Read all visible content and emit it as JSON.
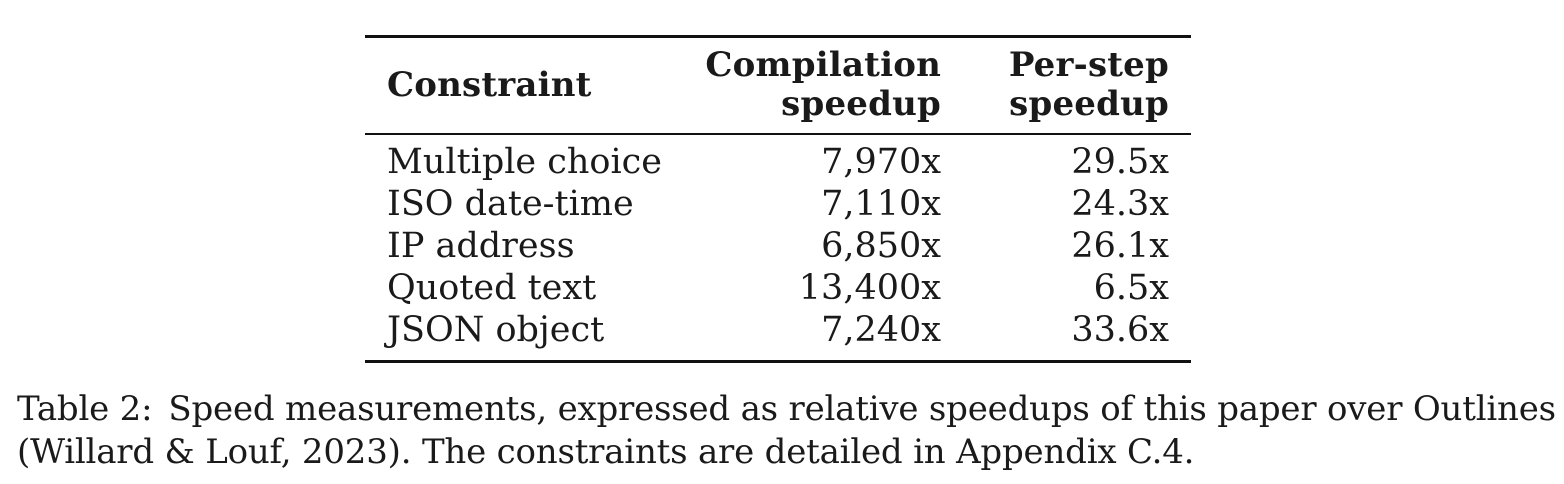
{
  "table": {
    "headers": [
      {
        "line1": "Constraint",
        "line2": ""
      },
      {
        "line1": "Compilation",
        "line2": "speedup"
      },
      {
        "line1": "Per-step",
        "line2": "speedup"
      }
    ],
    "rows": [
      {
        "constraint": "Multiple choice",
        "compilation": "7,970x",
        "per_step": "29.5x"
      },
      {
        "constraint": "ISO date-time",
        "compilation": "7,110x",
        "per_step": "24.3x"
      },
      {
        "constraint": "IP address",
        "compilation": "6,850x",
        "per_step": "26.1x"
      },
      {
        "constraint": "Quoted text",
        "compilation": "13,400x",
        "per_step": "6.5x"
      },
      {
        "constraint": "JSON object",
        "compilation": "7,240x",
        "per_step": "33.6x"
      }
    ]
  },
  "caption": {
    "label": "Table 2:",
    "line1": "Speed measurements, expressed as relative speedups of this paper over Outlines",
    "line2": "(Willard & Louf, 2023). The constraints are detailed in Appendix C.4."
  }
}
